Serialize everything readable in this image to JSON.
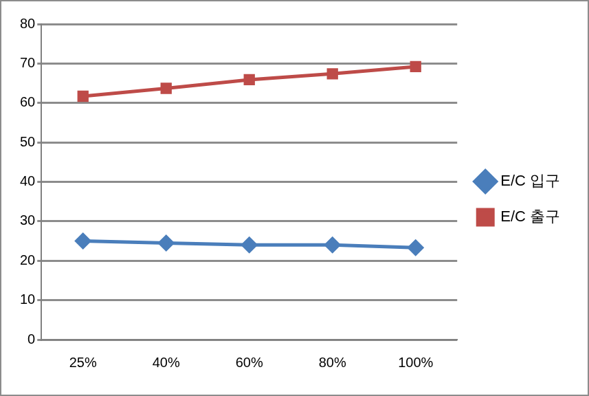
{
  "chart_data": {
    "type": "line",
    "categories": [
      "25%",
      "40%",
      "60%",
      "80%",
      "100%"
    ],
    "series": [
      {
        "name": "E/C 입구",
        "color": "#4a7ebb",
        "marker": "diamond",
        "line_style": "solid",
        "values": [
          25.0,
          24.5,
          24.0,
          24.0,
          23.3
        ]
      },
      {
        "name": "E/C 출구",
        "color": "#be4b48",
        "marker": "square",
        "line_style": "solid",
        "values": [
          61.7,
          63.7,
          65.9,
          67.4,
          69.2
        ]
      }
    ],
    "ylim": [
      0,
      80
    ],
    "yticks": [
      0,
      10,
      20,
      30,
      40,
      50,
      60,
      70,
      80
    ],
    "grid": true,
    "legend": "right"
  }
}
